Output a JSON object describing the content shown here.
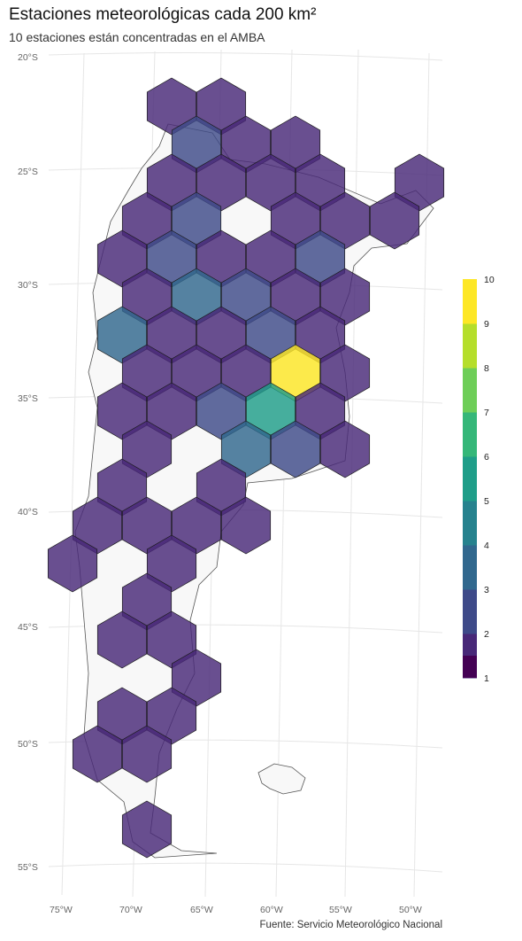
{
  "title": "Estaciones meteorológicas cada 200 km²",
  "subtitle": "10 estaciones están concentradas en el AMBA",
  "caption": "Fuente: Servicio Meteorológico Nacional",
  "lat_labels": [
    "20°S",
    "25°S",
    "30°S",
    "35°S",
    "40°S",
    "45°S",
    "50°S",
    "55°S"
  ],
  "lon_labels": [
    "75°W",
    "70°W",
    "65°W",
    "60°W",
    "55°W",
    "50°W"
  ],
  "legend": {
    "values": [
      "1",
      "2",
      "3",
      "4",
      "5",
      "6",
      "7",
      "8",
      "9",
      "10"
    ],
    "colors": [
      "#440154",
      "#482878",
      "#3e4a89",
      "#31688e",
      "#26828e",
      "#1f9e89",
      "#35b779",
      "#6ece58",
      "#b5de2b",
      "#fde725"
    ]
  },
  "colors": {
    "c2": "#482878",
    "c3": "#3e4a89",
    "c4": "#31688e",
    "c6": "#1f9e89",
    "c10": "#fde725",
    "land": "#f7f7f7",
    "grid": "#e4e4e4"
  },
  "hex_counts": {
    "description_free": true,
    "cells": [
      {
        "row": 0,
        "col": 0,
        "n": 2
      },
      {
        "row": 0,
        "col": 1,
        "n": 2
      },
      {
        "row": 1,
        "col": 0,
        "n": 3
      },
      {
        "row": 1,
        "col": 1,
        "n": 2
      },
      {
        "row": 1,
        "col": 2,
        "n": 2
      },
      {
        "row": 2,
        "col": 0,
        "n": 2
      },
      {
        "row": 2,
        "col": 1,
        "n": 2
      },
      {
        "row": 2,
        "col": 2,
        "n": 2
      },
      {
        "row": 2,
        "col": 3,
        "n": 2
      },
      {
        "row": 2,
        "col": 5,
        "n": 2
      },
      {
        "row": 3,
        "col": 0,
        "n": 2
      },
      {
        "row": 3,
        "col": 1,
        "n": 3
      },
      {
        "row": 3,
        "col": 3,
        "n": 2
      },
      {
        "row": 3,
        "col": 4,
        "n": 2
      },
      {
        "row": 3,
        "col": 5,
        "n": 2
      },
      {
        "row": 4,
        "col": 0,
        "n": 2
      },
      {
        "row": 4,
        "col": 1,
        "n": 3
      },
      {
        "row": 4,
        "col": 2,
        "n": 2
      },
      {
        "row": 4,
        "col": 3,
        "n": 2
      },
      {
        "row": 4,
        "col": 4,
        "n": 3
      },
      {
        "row": 5,
        "col": 0,
        "n": 2
      },
      {
        "row": 5,
        "col": 1,
        "n": 4
      },
      {
        "row": 5,
        "col": 2,
        "n": 3
      },
      {
        "row": 5,
        "col": 3,
        "n": 2
      },
      {
        "row": 5,
        "col": 4,
        "n": 2
      },
      {
        "row": 6,
        "col": 0,
        "n": 4
      },
      {
        "row": 6,
        "col": 1,
        "n": 2
      },
      {
        "row": 6,
        "col": 2,
        "n": 2
      },
      {
        "row": 6,
        "col": 3,
        "n": 3
      },
      {
        "row": 6,
        "col": 4,
        "n": 2
      },
      {
        "row": 7,
        "col": 0,
        "n": 2
      },
      {
        "row": 7,
        "col": 1,
        "n": 2
      },
      {
        "row": 7,
        "col": 2,
        "n": 2
      },
      {
        "row": 7,
        "col": 3,
        "n": 10
      },
      {
        "row": 7,
        "col": 4,
        "n": 2
      },
      {
        "row": 8,
        "col": 0,
        "n": 2
      },
      {
        "row": 8,
        "col": 1,
        "n": 2
      },
      {
        "row": 8,
        "col": 2,
        "n": 3
      },
      {
        "row": 8,
        "col": 3,
        "n": 6
      },
      {
        "row": 8,
        "col": 4,
        "n": 2
      },
      {
        "row": 9,
        "col": 0,
        "n": 2
      },
      {
        "row": 9,
        "col": 2,
        "n": 4
      },
      {
        "row": 9,
        "col": 3,
        "n": 3
      },
      {
        "row": 9,
        "col": 4,
        "n": 2
      },
      {
        "row": 10,
        "col": 0,
        "n": 2
      },
      {
        "row": 10,
        "col": 2,
        "n": 2
      },
      {
        "row": 11,
        "col": 0,
        "n": 2
      },
      {
        "row": 11,
        "col": 1,
        "n": 2
      },
      {
        "row": 11,
        "col": 2,
        "n": 2
      },
      {
        "row": 11,
        "col": 3,
        "n": 2
      },
      {
        "row": 12,
        "col": 0,
        "n": 2
      },
      {
        "row": 12,
        "col": 1,
        "n": 2
      },
      {
        "row": 13,
        "col": 0,
        "n": 2
      },
      {
        "row": 14,
        "col": 0,
        "n": 2
      },
      {
        "row": 14,
        "col": 1,
        "n": 2
      },
      {
        "row": 15,
        "col": 0,
        "n": 2
      },
      {
        "row": 17,
        "col": 0,
        "n": 2
      },
      {
        "row": 17,
        "col": 1,
        "n": 2
      },
      {
        "row": 18,
        "col": 0,
        "n": 2
      },
      {
        "row": 18,
        "col": 1,
        "n": 2
      },
      {
        "row": 20,
        "col": 0,
        "n": 2
      }
    ]
  }
}
